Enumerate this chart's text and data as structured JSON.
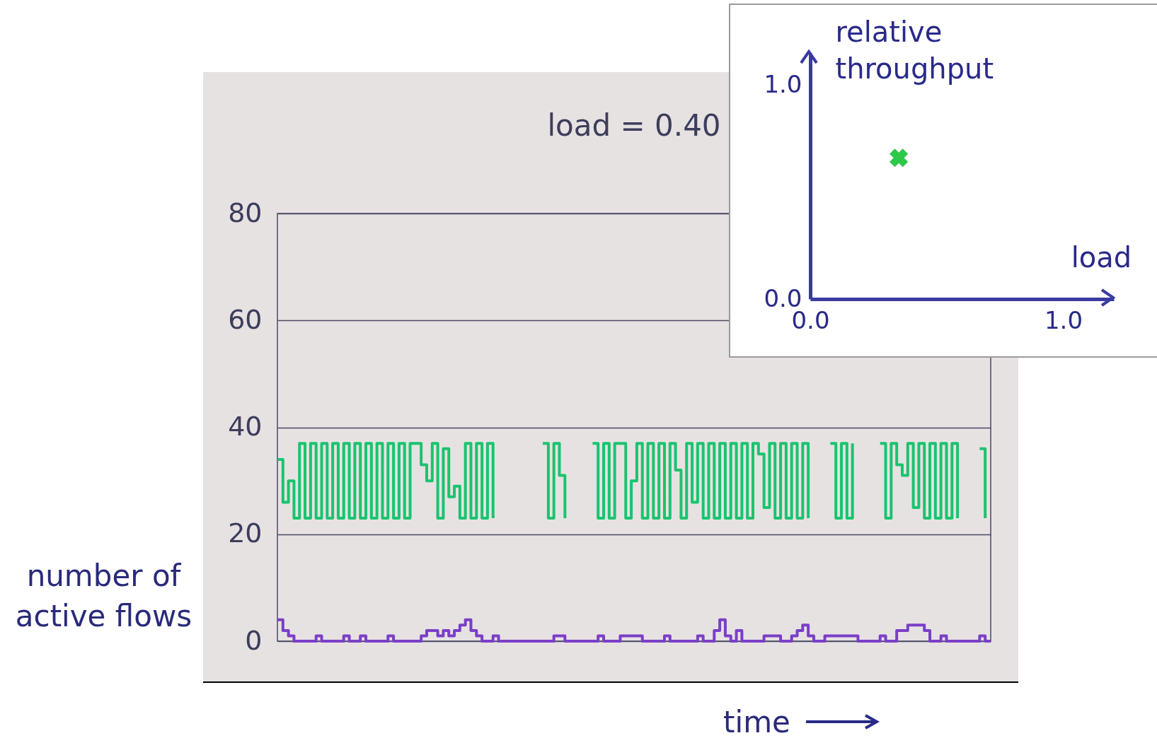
{
  "chart_data": [
    {
      "type": "step",
      "title": "load = 0.40",
      "xlabel": "time",
      "ylabel": "number of active flows",
      "categories": [
        null,
        null,
        null,
        null,
        null,
        null,
        null,
        null,
        null,
        null,
        null,
        null,
        null,
        null,
        null,
        null,
        null,
        null,
        null,
        null,
        null,
        null,
        null,
        null,
        null,
        null,
        null,
        null,
        null,
        null,
        null,
        null,
        null,
        null,
        null,
        null,
        null,
        null,
        null,
        null,
        null,
        null,
        null,
        null,
        null,
        null,
        null,
        null,
        null,
        null,
        null,
        null,
        null,
        null,
        null,
        null,
        null,
        null,
        null,
        null,
        null,
        null,
        null,
        null,
        null,
        null,
        null,
        null,
        null,
        null,
        null,
        null,
        null,
        null,
        null,
        null,
        null,
        null,
        null,
        null,
        null,
        null,
        null,
        null,
        null,
        null,
        null,
        null,
        null,
        null,
        null,
        null,
        null,
        null,
        null,
        null,
        null,
        null,
        null,
        null,
        null,
        null,
        null,
        null,
        null,
        null,
        null,
        null,
        null,
        null,
        null,
        null,
        null,
        null,
        null,
        null,
        null,
        null,
        null,
        null,
        null,
        null,
        null,
        null,
        null,
        null,
        null,
        null,
        null,
        null
      ],
      "series": [
        {
          "color": "#19c46f",
          "values": [
            34,
            26,
            30,
            23,
            37,
            23,
            37,
            23,
            37,
            23,
            37,
            23,
            37,
            23,
            37,
            23,
            37,
            23,
            37,
            23,
            37,
            23,
            37,
            23,
            37,
            37,
            33,
            30,
            37,
            23,
            36,
            27,
            29,
            23,
            37,
            23,
            37,
            23,
            37,
            23,
            null,
            null,
            null,
            null,
            null,
            null,
            null,
            null,
            37,
            23,
            37,
            31,
            23,
            null,
            null,
            null,
            null,
            37,
            23,
            37,
            23,
            37,
            37,
            23,
            30,
            37,
            23,
            37,
            23,
            37,
            23,
            37,
            32,
            23,
            37,
            26,
            37,
            23,
            37,
            23,
            37,
            23,
            37,
            23,
            37,
            23,
            37,
            35,
            25,
            37,
            23,
            37,
            23,
            37,
            23,
            37,
            23,
            null,
            null,
            null,
            37,
            23,
            37,
            23,
            37,
            null,
            null,
            null,
            null,
            37,
            23,
            37,
            33,
            31,
            37,
            25,
            37,
            23,
            37,
            23,
            37,
            23,
            37,
            23,
            null,
            null,
            null,
            36,
            23,
            null
          ]
        },
        {
          "color": "#7a3fc7",
          "values": [
            4,
            2,
            1,
            0,
            0,
            0,
            0,
            1,
            0,
            0,
            0,
            0,
            1,
            0,
            0,
            1,
            0,
            0,
            0,
            0,
            1,
            0,
            0,
            0,
            0,
            0,
            1,
            2,
            2,
            1,
            2,
            1,
            2,
            3,
            4,
            2,
            1,
            0,
            0,
            1,
            0,
            0,
            0,
            0,
            0,
            0,
            0,
            0,
            0,
            0,
            1,
            1,
            0,
            0,
            0,
            0,
            0,
            0,
            1,
            0,
            0,
            0,
            1,
            1,
            1,
            1,
            0,
            0,
            0,
            0,
            1,
            0,
            0,
            0,
            0,
            0,
            1,
            0,
            0,
            2,
            4,
            1,
            0,
            2,
            0,
            0,
            0,
            0,
            1,
            1,
            1,
            0,
            0,
            1,
            2,
            3,
            1,
            0,
            0,
            1,
            1,
            1,
            1,
            1,
            1,
            0,
            0,
            0,
            0,
            1,
            0,
            0,
            2,
            2,
            3,
            3,
            3,
            2,
            0,
            0,
            1,
            0,
            0,
            0,
            0,
            0,
            0,
            1,
            0,
            0
          ]
        }
      ],
      "ylim": [
        0,
        80
      ],
      "yticks": [
        0,
        20,
        40,
        60,
        80
      ],
      "grid": "y",
      "tick_labels": "y"
    },
    {
      "type": "scatter",
      "xlabel": "load",
      "ylabel": "relative throughput",
      "marker": "cross",
      "x": [
        0.35
      ],
      "series": [
        {
          "color": "#2ec84a",
          "values": [
            0.66
          ]
        }
      ],
      "xlim": [
        0,
        1.2
      ],
      "ylim": [
        0,
        1.15
      ],
      "xticks": [
        {
          "value": 0,
          "label": "0.0"
        },
        {
          "value": 1,
          "label": "1.0"
        }
      ],
      "yticks": [
        {
          "value": 0,
          "label": "0.0"
        },
        {
          "value": 1,
          "label": "1.0"
        }
      ]
    }
  ]
}
